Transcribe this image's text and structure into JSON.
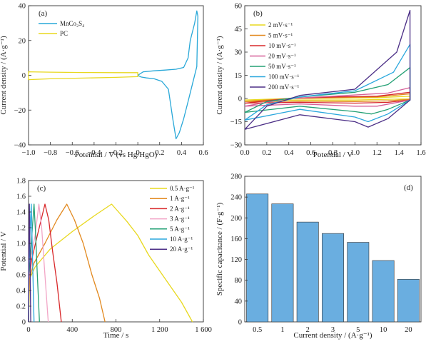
{
  "panels": [
    {
      "label": "(a)",
      "xlabel": "Potential / V (vs Hg/HgO)",
      "ylabel": "Current density / (A·g⁻¹)"
    },
    {
      "label": "(b)",
      "xlabel": "Potential / V",
      "ylabel": "Current density / (A·g⁻¹)"
    },
    {
      "label": "(c)",
      "xlabel": "Time / s",
      "ylabel": "Potential / V"
    },
    {
      "label": "(d)",
      "xlabel": "Current density / (A·g⁻¹)",
      "ylabel": "Specific capacitance / (F·g⁻¹)"
    }
  ],
  "chart_data": [
    {
      "type": "line",
      "xlabel": "Potential / V (vs Hg/HgO)",
      "ylabel": "Current density / (A·g⁻¹)",
      "xlim": [
        -1.0,
        0.6
      ],
      "ylim": [
        -40,
        40
      ],
      "x_ticks": [
        -1.0,
        -0.8,
        -0.6,
        -0.4,
        -0.2,
        0,
        0.2,
        0.4,
        0.6
      ],
      "x_tick_labels": [
        "−1.0",
        "−0.8",
        "−0.6",
        "−0.4",
        "−0.2",
        "0",
        "0.2",
        "0.4",
        "0.6"
      ],
      "y_ticks": [
        -40,
        -20,
        0,
        20,
        40
      ],
      "y_tick_labels": [
        "−40",
        "−20",
        "0",
        "20",
        "40"
      ],
      "legend_position": "top-left",
      "series": [
        {
          "name": "MnCo2S4",
          "legend_label": "MnCo₂S₄",
          "color": "#29a8d8",
          "points": [
            [
              0,
              0
            ],
            [
              0.05,
              2
            ],
            [
              0.15,
              2.6
            ],
            [
              0.25,
              3
            ],
            [
              0.35,
              3.5
            ],
            [
              0.42,
              4.5
            ],
            [
              0.46,
              10
            ],
            [
              0.48,
              20
            ],
            [
              0.5,
              25
            ],
            [
              0.52,
              30
            ],
            [
              0.54,
              37
            ],
            [
              0.55,
              34
            ],
            [
              0.54,
              5
            ],
            [
              0.5,
              -5
            ],
            [
              0.46,
              -15
            ],
            [
              0.42,
              -25
            ],
            [
              0.38,
              -33
            ],
            [
              0.35,
              -36.5
            ],
            [
              0.32,
              -25
            ],
            [
              0.28,
              -8
            ],
            [
              0.22,
              -3.5
            ],
            [
              0.15,
              -2
            ],
            [
              0.08,
              -1.5
            ],
            [
              0.03,
              -1
            ],
            [
              0,
              0
            ]
          ]
        },
        {
          "name": "PC",
          "legend_label": "PC",
          "color": "#e8d81e",
          "points": [
            [
              -1.0,
              -2.5
            ],
            [
              -0.8,
              -2
            ],
            [
              -0.5,
              -1.6
            ],
            [
              -0.2,
              -1.2
            ],
            [
              0,
              -0.8
            ],
            [
              0,
              1.5
            ],
            [
              -0.2,
              1.5
            ],
            [
              -0.5,
              1.6
            ],
            [
              -0.8,
              1.8
            ],
            [
              -1.0,
              2
            ],
            [
              -1.0,
              -2.5
            ]
          ]
        }
      ]
    },
    {
      "type": "line",
      "xlabel": "Potential / V",
      "ylabel": "Current density / (A·g⁻¹)",
      "xlim": [
        0,
        1.6
      ],
      "ylim": [
        -30,
        60
      ],
      "x_ticks": [
        0,
        0.2,
        0.4,
        0.6,
        0.8,
        1.0,
        1.2,
        1.4,
        1.6
      ],
      "x_tick_labels": [
        "0.0",
        "0.2",
        "0.4",
        "0.6",
        "0.8",
        "1.0",
        "1.2",
        "1.4",
        "1.6"
      ],
      "y_ticks": [
        -30,
        -15,
        0,
        15,
        30,
        45,
        60
      ],
      "y_tick_labels": [
        "−30",
        "−15",
        "0",
        "15",
        "30",
        "45",
        "60"
      ],
      "legend_position": "top-left",
      "series": [
        {
          "name": "2 mV·s⁻¹",
          "color": "#e8d81e",
          "points": [
            [
              0,
              -1
            ],
            [
              0.5,
              -1
            ],
            [
              1.0,
              -1
            ],
            [
              1.3,
              -0.5
            ],
            [
              1.5,
              -0.3
            ],
            [
              1.5,
              1.5
            ],
            [
              1.2,
              0.5
            ],
            [
              0.8,
              0.2
            ],
            [
              0.4,
              0
            ],
            [
              0,
              -1
            ]
          ]
        },
        {
          "name": "5 mV·s⁻¹",
          "color": "#e2891f",
          "points": [
            [
              0,
              -2
            ],
            [
              0.5,
              -1.8
            ],
            [
              1.0,
              -2
            ],
            [
              1.3,
              -1.5
            ],
            [
              1.5,
              -0.5
            ],
            [
              1.5,
              3
            ],
            [
              1.2,
              1
            ],
            [
              0.8,
              0.5
            ],
            [
              0.4,
              0
            ],
            [
              0,
              -2
            ]
          ]
        },
        {
          "name": "10 mV·s⁻¹",
          "color": "#d8282a",
          "points": [
            [
              0,
              -3
            ],
            [
              0.5,
              -2.5
            ],
            [
              1.0,
              -3
            ],
            [
              1.3,
              -2.5
            ],
            [
              1.5,
              -1
            ],
            [
              1.5,
              4
            ],
            [
              1.2,
              1.5
            ],
            [
              0.8,
              1
            ],
            [
              0.4,
              0
            ],
            [
              0,
              -3
            ]
          ]
        },
        {
          "name": "20 mV·s⁻¹",
          "color": "#d65f98",
          "points": [
            [
              0,
              -5
            ],
            [
              0.5,
              -3.5
            ],
            [
              1.0,
              -5
            ],
            [
              1.2,
              -5
            ],
            [
              1.5,
              -1
            ],
            [
              1.5,
              7
            ],
            [
              1.3,
              3.5
            ],
            [
              0.8,
              1.5
            ],
            [
              0.4,
              0
            ],
            [
              0,
              -5
            ]
          ]
        },
        {
          "name": "50 mV·s⁻¹",
          "color": "#23a074",
          "points": [
            [
              0,
              -9
            ],
            [
              0.5,
              -5
            ],
            [
              1.0,
              -8.5
            ],
            [
              1.15,
              -10
            ],
            [
              1.3,
              -7
            ],
            [
              1.5,
              -1
            ],
            [
              1.5,
              20
            ],
            [
              1.3,
              9
            ],
            [
              1.0,
              4
            ],
            [
              0.5,
              1
            ],
            [
              0.2,
              -2
            ],
            [
              0,
              -9
            ]
          ]
        },
        {
          "name": "100 mV·s⁻¹",
          "color": "#2aa7dd",
          "points": [
            [
              0,
              -14
            ],
            [
              0.5,
              -7
            ],
            [
              1.0,
              -12
            ],
            [
              1.12,
              -15
            ],
            [
              1.3,
              -10
            ],
            [
              1.5,
              -1
            ],
            [
              1.5,
              35
            ],
            [
              1.35,
              17
            ],
            [
              1.0,
              5
            ],
            [
              0.5,
              1
            ],
            [
              0.2,
              -4
            ],
            [
              0,
              -14
            ]
          ]
        },
        {
          "name": "200 mV·s⁻¹",
          "color": "#4b2e86",
          "points": [
            [
              0,
              -20
            ],
            [
              0.5,
              -10.5
            ],
            [
              1.0,
              -15
            ],
            [
              1.12,
              -18.5
            ],
            [
              1.3,
              -13
            ],
            [
              1.5,
              -1
            ],
            [
              1.5,
              57
            ],
            [
              1.38,
              30
            ],
            [
              1.0,
              6
            ],
            [
              0.5,
              2
            ],
            [
              0.2,
              -5
            ],
            [
              0,
              -20
            ]
          ]
        }
      ]
    },
    {
      "type": "line",
      "xlabel": "Time / s",
      "ylabel": "Potential / V",
      "xlim": [
        0,
        1600
      ],
      "ylim": [
        0,
        1.8
      ],
      "x_ticks": [
        0,
        400,
        800,
        1200,
        1600
      ],
      "x_tick_labels": [
        "0",
        "400",
        "800",
        "1 200",
        "1 600"
      ],
      "y_ticks": [
        0,
        0.2,
        0.4,
        0.6,
        0.8,
        1.0,
        1.2,
        1.4,
        1.6,
        1.8
      ],
      "y_tick_labels": [
        "0",
        "0.2",
        "0.4",
        "0.6",
        "0.8",
        "1.0",
        "1.2",
        "1.4",
        "1.6",
        "1.8"
      ],
      "legend_position": "top-right",
      "series": [
        {
          "name": "0.5 A·g⁻¹",
          "color": "#e8d81e",
          "points": [
            [
              0,
              0
            ],
            [
              10,
              0.55
            ],
            [
              60,
              0.7
            ],
            [
              200,
              0.93
            ],
            [
              400,
              1.15
            ],
            [
              600,
              1.35
            ],
            [
              760,
              1.5
            ],
            [
              900,
              1.28
            ],
            [
              1000,
              1.1
            ],
            [
              1100,
              0.85
            ],
            [
              1250,
              0.55
            ],
            [
              1400,
              0.25
            ],
            [
              1500,
              0
            ]
          ]
        },
        {
          "name": "1 A·g⁻¹",
          "color": "#e2891f",
          "points": [
            [
              0,
              0
            ],
            [
              6,
              0.55
            ],
            [
              50,
              0.75
            ],
            [
              150,
              1.0
            ],
            [
              260,
              1.3
            ],
            [
              350,
              1.5
            ],
            [
              420,
              1.3
            ],
            [
              500,
              1.0
            ],
            [
              580,
              0.6
            ],
            [
              650,
              0.3
            ],
            [
              700,
              0
            ]
          ]
        },
        {
          "name": "2 A·g⁻¹",
          "color": "#d8282a",
          "points": [
            [
              0,
              0
            ],
            [
              4,
              0.55
            ],
            [
              30,
              0.8
            ],
            [
              80,
              1.1
            ],
            [
              150,
              1.5
            ],
            [
              185,
              1.3
            ],
            [
              220,
              0.9
            ],
            [
              260,
              0.5
            ],
            [
              300,
              0
            ]
          ]
        },
        {
          "name": "3 A·g⁻¹",
          "color": "#f2a5c6",
          "points": [
            [
              0,
              0
            ],
            [
              3,
              0.55
            ],
            [
              25,
              0.85
            ],
            [
              60,
              1.1
            ],
            [
              95,
              1.5
            ],
            [
              120,
              1.2
            ],
            [
              140,
              0.8
            ],
            [
              165,
              0.3
            ],
            [
              180,
              0
            ]
          ]
        },
        {
          "name": "5 A·g⁻¹",
          "color": "#23a074",
          "points": [
            [
              0,
              0
            ],
            [
              2,
              0.6
            ],
            [
              20,
              0.9
            ],
            [
              50,
              1.5
            ],
            [
              65,
              1.1
            ],
            [
              80,
              0.6
            ],
            [
              100,
              0
            ]
          ]
        },
        {
          "name": "10 A·g⁻¹",
          "color": "#2aa7dd",
          "points": [
            [
              0,
              0
            ],
            [
              2,
              0.7
            ],
            [
              15,
              1.2
            ],
            [
              25,
              1.5
            ],
            [
              33,
              1.0
            ],
            [
              42,
              0.5
            ],
            [
              50,
              0
            ]
          ]
        },
        {
          "name": "20 A·g⁻¹",
          "color": "#4b2e86",
          "points": [
            [
              0,
              0
            ],
            [
              1,
              0.8
            ],
            [
              8,
              1.5
            ],
            [
              14,
              0.8
            ],
            [
              20,
              0
            ]
          ]
        }
      ]
    },
    {
      "type": "bar",
      "xlabel": "Current density / (A·g⁻¹)",
      "ylabel": "Specific capacitance / (F·g⁻¹)",
      "categories": [
        "0.5",
        "1",
        "2",
        "3",
        "5",
        "10",
        "20"
      ],
      "values": [
        246,
        227,
        192,
        170,
        153,
        118,
        82
      ],
      "ylim": [
        0,
        280
      ],
      "y_ticks": [
        0,
        40,
        80,
        120,
        160,
        200,
        240,
        280
      ],
      "y_tick_labels": [
        "0",
        "40",
        "80",
        "120",
        "160",
        "200",
        "240",
        "280"
      ],
      "color": "#6aaee0"
    }
  ]
}
